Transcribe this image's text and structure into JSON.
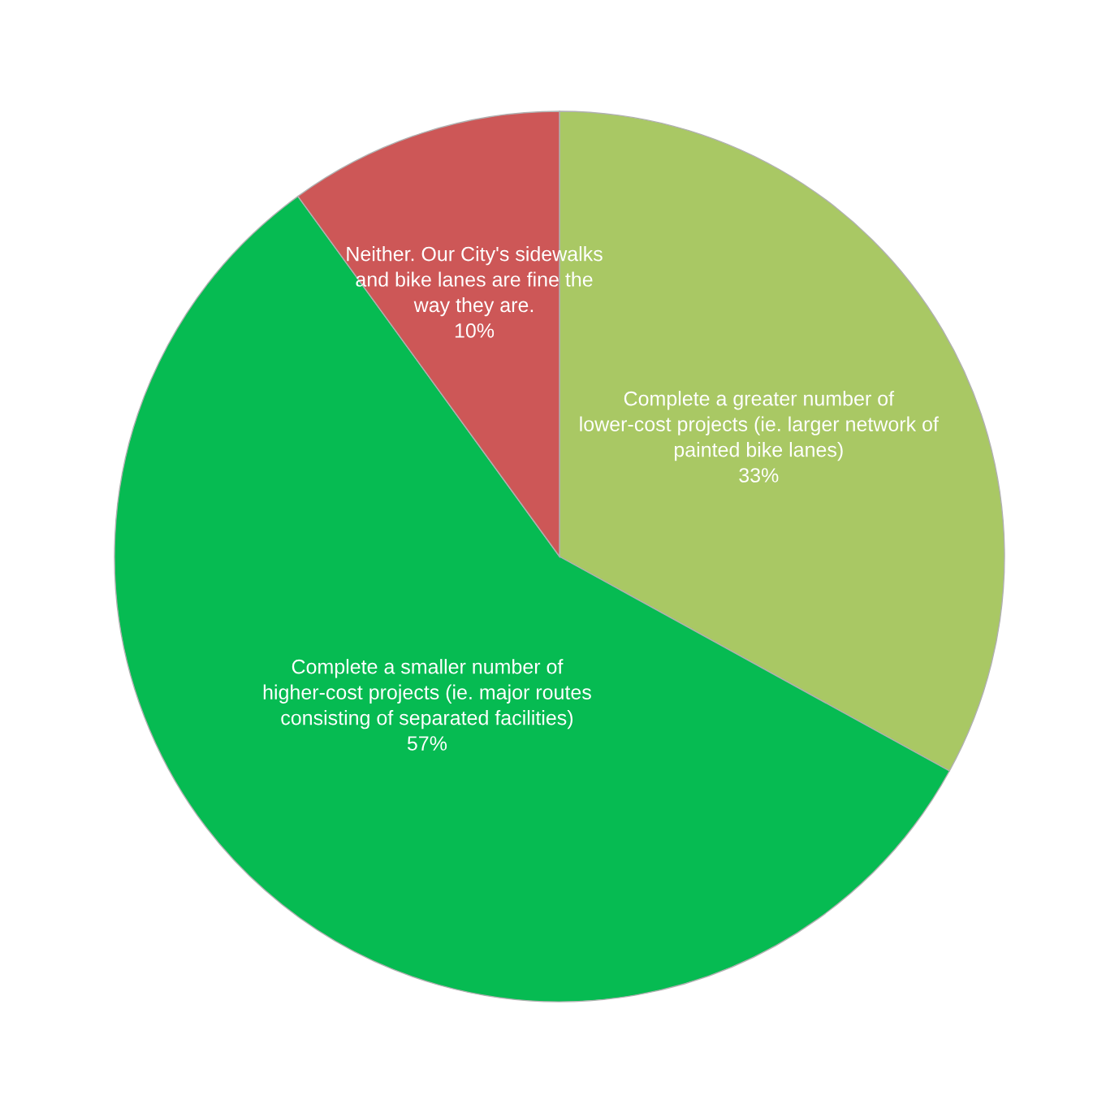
{
  "chart_data": {
    "type": "pie",
    "categories": [
      "Complete a greater number of lower-cost projects (ie. larger network of painted bike lanes)",
      "Complete a smaller number of higher-cost projects (ie. major routes consisting of separated facilities)",
      "Neither. Our City's sidewalks and bike lanes are fine the way they are."
    ],
    "values": [
      33,
      57,
      10
    ],
    "value_labels": [
      "33%",
      "57%",
      "10%"
    ],
    "colors": [
      "#a9c864",
      "#06bb52",
      "#cd5757"
    ],
    "legend": false
  }
}
